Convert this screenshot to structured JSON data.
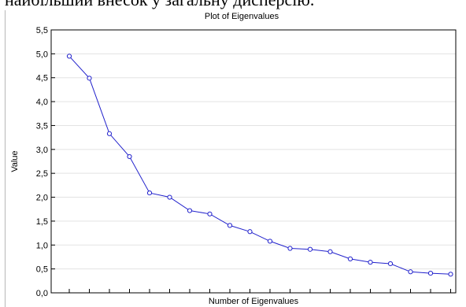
{
  "caption": {
    "text": "найбільший внесок у загальну дисперсію."
  },
  "chart_data": {
    "type": "line",
    "title": "Plot of Eigenvalues",
    "xlabel": "Number of Eigenvalues",
    "ylabel": "Value",
    "ylim": [
      0,
      5.5
    ],
    "y_ticks": [
      "0,0",
      "0,5",
      "1,0",
      "1,5",
      "2,0",
      "2,5",
      "3,0",
      "3,5",
      "4,0",
      "4,5",
      "5,0",
      "5,5"
    ],
    "x": [
      1,
      2,
      3,
      4,
      5,
      6,
      7,
      8,
      9,
      10,
      11,
      12,
      13,
      14,
      15,
      16,
      17,
      18,
      19,
      20
    ],
    "values": [
      4.95,
      4.49,
      3.33,
      2.85,
      2.09,
      2.0,
      1.72,
      1.65,
      1.41,
      1.28,
      1.08,
      0.93,
      0.91,
      0.86,
      0.71,
      0.64,
      0.61,
      0.44,
      0.41,
      0.39
    ],
    "grid": true,
    "line_color": "#2222cc"
  }
}
